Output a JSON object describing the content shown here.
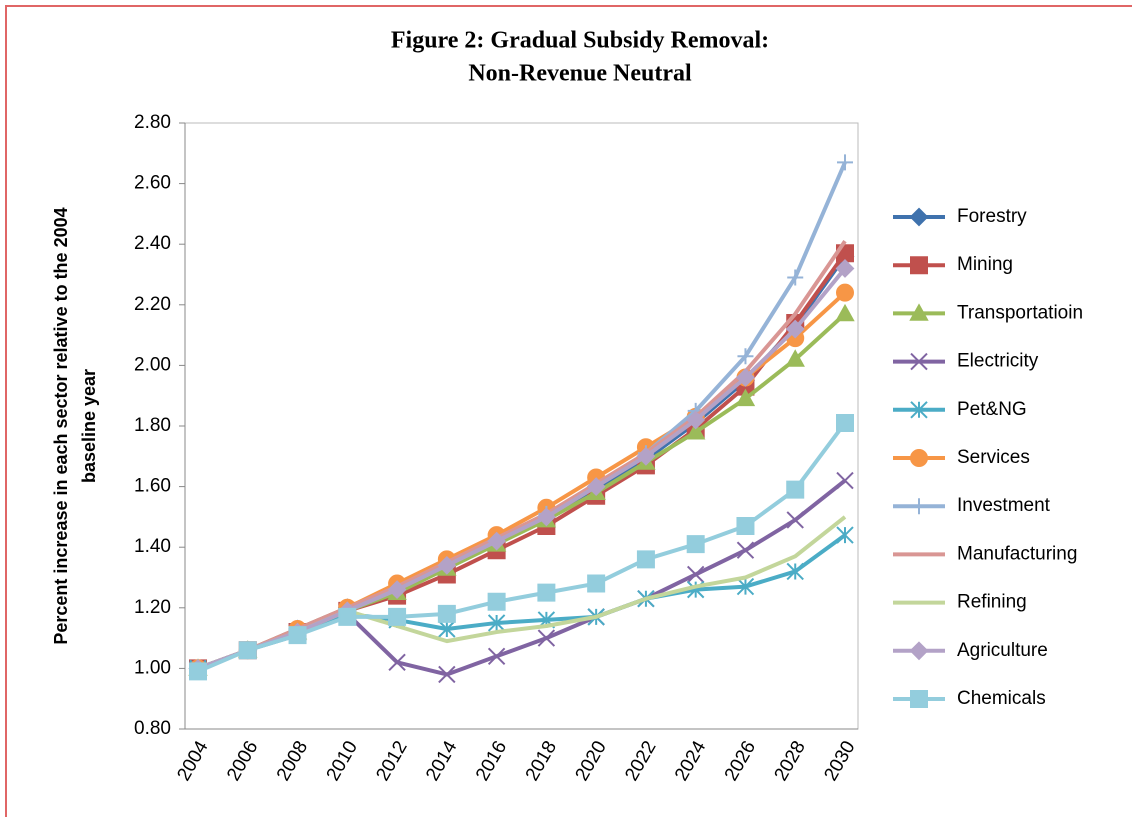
{
  "chart_data": {
    "type": "line",
    "title": [
      "Figure 2:  Gradual Subsidy Removal:",
      "Non-Revenue Neutral"
    ],
    "y_label": [
      "Percent increase in each sector relative to the 2004",
      "baseline year"
    ],
    "categories": [
      "2004",
      "2006",
      "2008",
      "2010",
      "2012",
      "2014",
      "2016",
      "2018",
      "2020",
      "2022",
      "2024",
      "2026",
      "2028",
      "2030"
    ],
    "ylim": [
      0.8,
      2.8
    ],
    "yticks": [
      {
        "value": 0.8,
        "label": "0.80"
      },
      {
        "value": 1.0,
        "label": "1.00"
      },
      {
        "value": 1.2,
        "label": "1.20"
      },
      {
        "value": 1.4,
        "label": "1.40"
      },
      {
        "value": 1.6,
        "label": "1.60"
      },
      {
        "value": 1.8,
        "label": "1.80"
      },
      {
        "value": 2.0,
        "label": "2.00"
      },
      {
        "value": 2.2,
        "label": "2.20"
      },
      {
        "value": 2.4,
        "label": "2.40"
      },
      {
        "value": 2.6,
        "label": "2.60"
      },
      {
        "value": 2.8,
        "label": "2.80"
      }
    ],
    "grid": false,
    "legend": "right",
    "series": [
      {
        "name": "Forestry",
        "color": "#3f72ad",
        "marker": "diamond",
        "values": [
          1.0,
          1.06,
          1.13,
          1.2,
          1.27,
          1.34,
          1.42,
          1.5,
          1.59,
          1.69,
          1.81,
          1.95,
          2.13,
          2.36
        ]
      },
      {
        "name": "Mining",
        "color": "#c0504d",
        "marker": "square",
        "values": [
          1.0,
          1.06,
          1.12,
          1.19,
          1.24,
          1.31,
          1.39,
          1.47,
          1.57,
          1.67,
          1.79,
          1.93,
          2.14,
          2.37
        ]
      },
      {
        "name": "Transportatioin",
        "color": "#9bbb59",
        "marker": "triangle",
        "values": [
          1.0,
          1.06,
          1.12,
          1.19,
          1.25,
          1.33,
          1.41,
          1.49,
          1.58,
          1.68,
          1.78,
          1.89,
          2.02,
          2.17
        ]
      },
      {
        "name": "Electricity",
        "color": "#8064a2",
        "marker": "x",
        "values": [
          1.0,
          1.06,
          1.12,
          1.18,
          1.02,
          0.98,
          1.04,
          1.1,
          1.17,
          1.23,
          1.31,
          1.39,
          1.49,
          1.62
        ]
      },
      {
        "name": "Pet&NG",
        "color": "#4bacc6",
        "marker": "asterisk",
        "values": [
          1.0,
          1.06,
          1.11,
          1.18,
          1.16,
          1.13,
          1.15,
          1.16,
          1.17,
          1.23,
          1.26,
          1.27,
          1.32,
          1.44
        ]
      },
      {
        "name": "Services",
        "color": "#f79646",
        "marker": "circle",
        "values": [
          1.0,
          1.06,
          1.13,
          1.2,
          1.28,
          1.36,
          1.44,
          1.53,
          1.63,
          1.73,
          1.83,
          1.96,
          2.09,
          2.24
        ]
      },
      {
        "name": "Investment",
        "color": "#95b3d7",
        "marker": "plus",
        "values": [
          1.0,
          1.06,
          1.12,
          1.19,
          1.26,
          1.34,
          1.42,
          1.51,
          1.6,
          1.71,
          1.85,
          2.03,
          2.29,
          2.67
        ]
      },
      {
        "name": "Manufacturing",
        "color": "#d99694",
        "marker": "none",
        "values": [
          1.0,
          1.06,
          1.13,
          1.2,
          1.27,
          1.35,
          1.43,
          1.51,
          1.61,
          1.71,
          1.83,
          1.98,
          2.17,
          2.41
        ]
      },
      {
        "name": "Refining",
        "color": "#c3d69b",
        "marker": "none",
        "values": [
          1.0,
          1.06,
          1.12,
          1.19,
          1.14,
          1.09,
          1.12,
          1.14,
          1.17,
          1.23,
          1.27,
          1.3,
          1.37,
          1.5
        ]
      },
      {
        "name": "Agriculture",
        "color": "#b3a2c7",
        "marker": "diamond",
        "values": [
          1.0,
          1.06,
          1.12,
          1.19,
          1.26,
          1.34,
          1.42,
          1.5,
          1.6,
          1.7,
          1.82,
          1.96,
          2.12,
          2.32
        ]
      },
      {
        "name": "Chemicals",
        "color": "#93cddd",
        "marker": "square",
        "values": [
          0.99,
          1.06,
          1.11,
          1.17,
          1.17,
          1.18,
          1.22,
          1.25,
          1.28,
          1.36,
          1.41,
          1.47,
          1.59,
          1.81
        ]
      }
    ]
  }
}
